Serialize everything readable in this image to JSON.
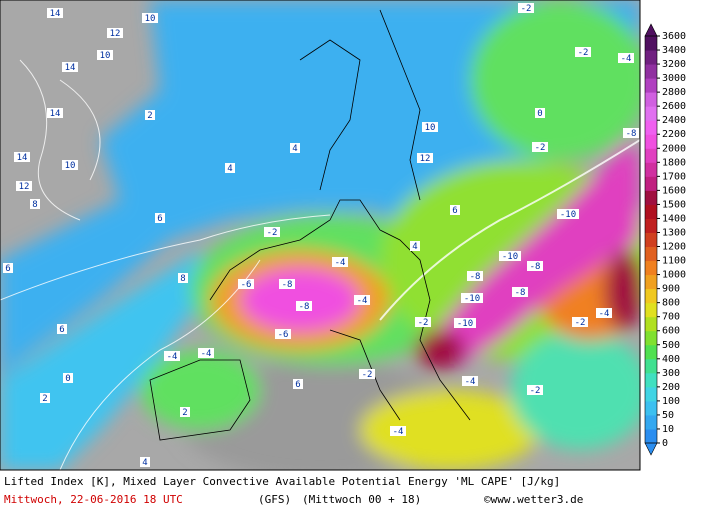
{
  "map": {
    "labels": [
      "14",
      "10",
      "12",
      "10",
      "14",
      "14",
      "14",
      "10",
      "12",
      "8",
      "6",
      "4",
      "2",
      "4",
      "6",
      "8",
      "6",
      "0",
      "2",
      "-2",
      "-4",
      "-6",
      "-8",
      "-8",
      "-4",
      "-6",
      "-4",
      "-4",
      "-2",
      "-2",
      "-2",
      "-4",
      "-2",
      "-8",
      "-10",
      "-10",
      "-8",
      "-8",
      "-10",
      "-10",
      "-8",
      "-2",
      "-4",
      "-4",
      "-2",
      "-4",
      "2",
      "4",
      "6",
      "12",
      "10",
      "0",
      "6",
      "4",
      "-2"
    ]
  },
  "colorbar": {
    "levels": [
      0,
      10,
      50,
      100,
      200,
      300,
      400,
      500,
      600,
      700,
      800,
      900,
      1000,
      1100,
      1200,
      1300,
      1400,
      1500,
      1600,
      1700,
      1800,
      2000,
      2200,
      2400,
      2600,
      2800,
      3000,
      3200,
      3400,
      3600
    ],
    "colors": [
      "#2b8ef0",
      "#34a8f0",
      "#3cc0f0",
      "#40d4e4",
      "#40e0c0",
      "#40e090",
      "#50e050",
      "#80e030",
      "#b0e020",
      "#e0e020",
      "#f0c820",
      "#f0a020",
      "#f08020",
      "#e06020",
      "#d04020",
      "#c02020",
      "#b01020",
      "#a01040",
      "#c02080",
      "#d030a0",
      "#e040c0",
      "#f050e0",
      "#f060f0",
      "#e070f0",
      "#d060e0",
      "#b040c0",
      "#9030a0",
      "#702080",
      "#501060"
    ]
  },
  "footer": {
    "title": "Lifted Index [K], Mixed Layer Convective Available Potential Energy 'ML CAPE' [J/kg]",
    "date": "Mittwoch, 22-06-2016  18 UTC",
    "model": "(GFS)",
    "run": "(Mittwoch 00 + 18)",
    "credit": "©www.wetter3.de"
  }
}
